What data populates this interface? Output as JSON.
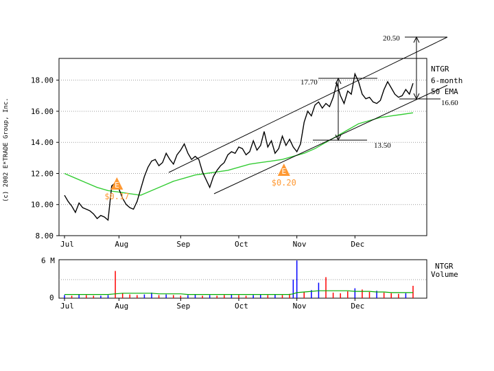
{
  "copyright": "(c) 2002 E*TRADE Group, Inc.",
  "colors": {
    "price": "#000000",
    "ema": "#33cc33",
    "earnings": "#ff9933",
    "grid": "#999999",
    "vol_up": "#0000ff",
    "vol_down": "#ff0000",
    "vol_avg": "#00aa00"
  },
  "price_chart": {
    "symbol": "NTGR",
    "period": "6-month",
    "ema_label": "50 EMA",
    "y_ticks": [
      "18.00",
      "16.00",
      "14.00",
      "12.00",
      "10.00",
      "8.00"
    ],
    "ylim": [
      8,
      19.4
    ],
    "month_labels": [
      "Jul",
      "Aug",
      "Sep",
      "Oct",
      "Nov",
      "Dec"
    ]
  },
  "volume_chart": {
    "label_symbol": "NTGR",
    "label_title": "Volume",
    "y_top": "6 M",
    "y_bottom": "0",
    "month_labels": [
      "Jul",
      "Aug",
      "Sep",
      "Oct",
      "Nov",
      "Dec"
    ]
  },
  "earnings": [
    {
      "icon": "E",
      "label": "$0.17",
      "day": 30
    },
    {
      "icon": "E",
      "label": "$0.20",
      "day": 122
    }
  ],
  "annotations": {
    "high_target": "20.50",
    "high_measure": "17.70",
    "low_measure": "13.50",
    "low_target": "16.60"
  },
  "chart_data": {
    "type": "line",
    "x_unit": "trading day from start of July",
    "series": [
      {
        "name": "NTGR",
        "x": [
          0,
          2,
          4,
          6,
          8,
          10,
          12,
          14,
          16,
          18,
          20,
          22,
          24,
          26,
          28,
          30,
          32,
          34,
          36,
          38,
          40,
          42,
          44,
          46,
          48,
          50,
          52,
          54,
          56,
          58,
          60,
          62,
          64,
          66,
          68,
          70,
          72,
          74,
          76,
          78,
          80,
          82,
          84,
          86,
          88,
          90,
          92,
          94,
          96,
          98,
          100,
          102,
          104,
          106,
          108,
          110,
          112,
          114,
          116,
          118,
          120,
          122,
          124,
          126,
          128,
          130,
          132,
          134,
          136,
          138,
          140,
          142,
          144,
          146,
          148,
          150,
          152,
          154,
          156,
          158,
          160,
          162,
          164,
          166,
          168,
          170,
          172,
          174,
          176,
          178,
          180,
          182,
          184,
          186,
          188,
          190,
          192
        ],
        "values": [
          10.6,
          10.2,
          9.9,
          9.5,
          10.1,
          9.8,
          9.7,
          9.6,
          9.4,
          9.1,
          9.3,
          9.2,
          9.0,
          11.2,
          11.4,
          11.0,
          10.4,
          10.0,
          9.8,
          9.7,
          10.2,
          11.0,
          11.8,
          12.4,
          12.8,
          12.9,
          12.5,
          12.7,
          13.3,
          12.9,
          12.6,
          13.2,
          13.5,
          13.9,
          13.3,
          12.9,
          13.1,
          12.9,
          12.1,
          11.6,
          11.1,
          11.8,
          12.2,
          12.5,
          12.7,
          13.2,
          13.4,
          13.3,
          13.7,
          13.6,
          13.2,
          13.4,
          14.1,
          13.5,
          13.8,
          14.7,
          13.7,
          14.1,
          13.3,
          13.6,
          14.4,
          13.8,
          14.2,
          13.7,
          13.4,
          13.9,
          15.3,
          16.0,
          15.7,
          16.4,
          16.6,
          16.2,
          16.5,
          16.3,
          16.9,
          17.8,
          17.0,
          16.5,
          17.3,
          17.1,
          18.4,
          17.9,
          17.1,
          16.8,
          16.9,
          16.6,
          16.5,
          16.7,
          17.4,
          17.9,
          17.5,
          17.1,
          16.9,
          17.0,
          17.4,
          17.1,
          17.8
        ]
      },
      {
        "name": "50 EMA",
        "x": [
          0,
          6,
          12,
          18,
          24,
          30,
          36,
          42,
          48,
          54,
          60,
          66,
          72,
          78,
          84,
          90,
          96,
          102,
          108,
          114,
          120,
          126,
          132,
          138,
          144,
          150,
          156,
          162,
          168,
          174,
          180,
          186,
          192
        ],
        "values": [
          12.0,
          11.7,
          11.4,
          11.1,
          10.9,
          10.8,
          10.7,
          10.6,
          10.9,
          11.2,
          11.5,
          11.7,
          11.9,
          12.0,
          12.1,
          12.2,
          12.4,
          12.6,
          12.7,
          12.8,
          12.9,
          13.1,
          13.3,
          13.6,
          14.0,
          14.4,
          14.8,
          15.2,
          15.4,
          15.6,
          15.7,
          15.8,
          15.9
        ]
      }
    ],
    "volume": {
      "unit": "M shares",
      "ylim": [
        0,
        6
      ],
      "x": [
        0,
        4,
        8,
        12,
        16,
        20,
        24,
        28,
        32,
        36,
        40,
        44,
        48,
        52,
        56,
        60,
        64,
        68,
        72,
        76,
        80,
        84,
        88,
        92,
        96,
        100,
        104,
        108,
        112,
        116,
        120,
        124,
        126,
        128,
        132,
        136,
        140,
        144,
        148,
        152,
        156,
        160,
        164,
        168,
        172,
        176,
        180,
        184,
        188,
        192
      ],
      "values": [
        0.5,
        0.4,
        0.6,
        0.5,
        0.4,
        0.4,
        0.5,
        4.4,
        0.8,
        0.6,
        0.5,
        0.6,
        0.9,
        0.5,
        0.6,
        0.5,
        0.4,
        0.5,
        0.6,
        0.4,
        0.5,
        0.4,
        0.5,
        0.6,
        0.5,
        0.4,
        0.5,
        0.6,
        0.5,
        0.6,
        0.5,
        0.7,
        3.0,
        6.1,
        1.0,
        1.3,
        2.5,
        3.4,
        0.9,
        0.8,
        1.1,
        1.6,
        1.4,
        1.0,
        1.2,
        0.9,
        0.8,
        0.7,
        0.8,
        2.0
      ],
      "avg": [
        0.6,
        0.6,
        0.6,
        0.6,
        0.6,
        0.6,
        0.6,
        0.7,
        0.8,
        0.8,
        0.8,
        0.8,
        0.8,
        0.7,
        0.7,
        0.7,
        0.7,
        0.6,
        0.6,
        0.6,
        0.6,
        0.6,
        0.6,
        0.6,
        0.6,
        0.6,
        0.6,
        0.6,
        0.6,
        0.6,
        0.6,
        0.6,
        0.7,
        0.9,
        1.0,
        1.1,
        1.2,
        1.2,
        1.2,
        1.2,
        1.2,
        1.1,
        1.1,
        1.1,
        1.0,
        1.0,
        0.9,
        0.9,
        0.9,
        0.9
      ]
    }
  }
}
